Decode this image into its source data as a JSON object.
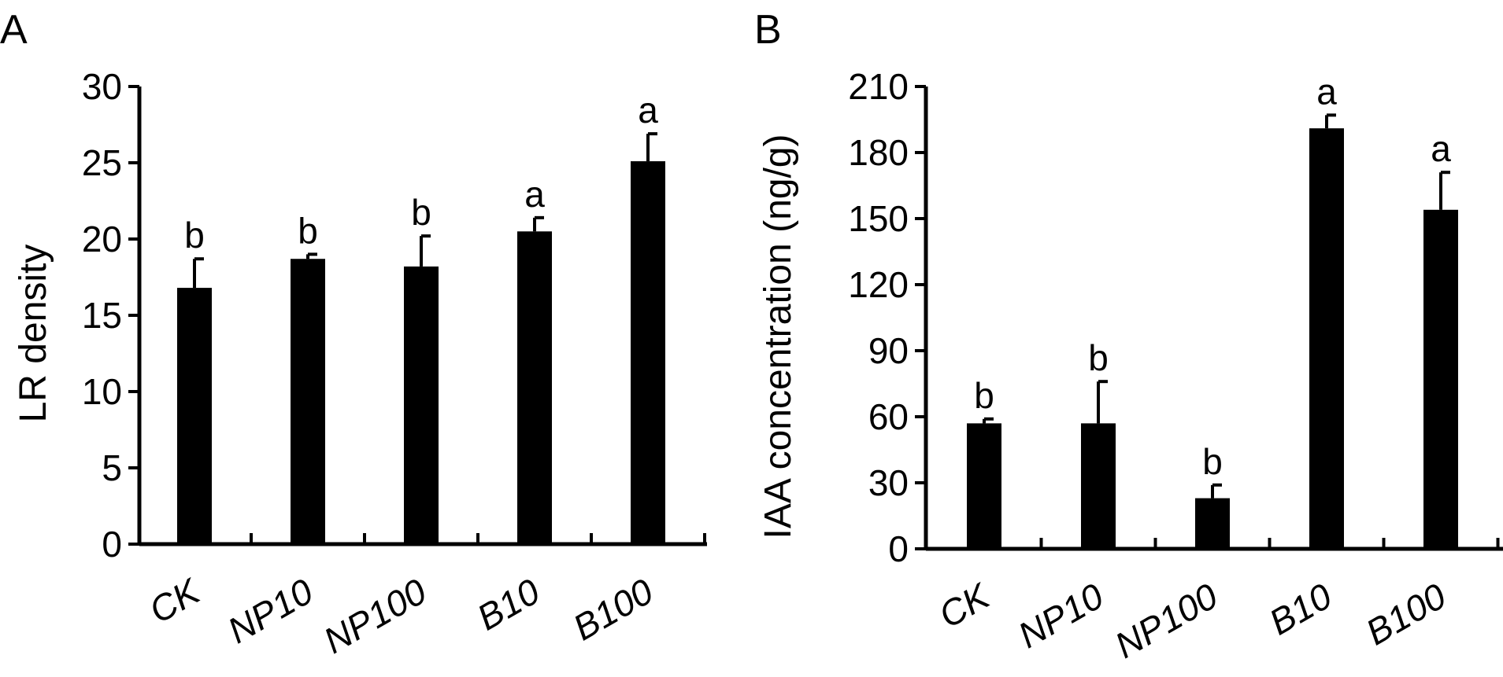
{
  "chart_data": [
    {
      "type": "bar",
      "panel": "A",
      "categories": [
        "CK",
        "NP10",
        "NP100",
        "B10",
        "B100"
      ],
      "values": [
        16.8,
        18.7,
        18.2,
        20.5,
        25.1
      ],
      "errors": [
        1.9,
        0.3,
        2.0,
        0.9,
        1.8
      ],
      "significance": [
        "b",
        "b",
        "b",
        "a",
        "a"
      ],
      "xlabel": "",
      "ylabel": "LR density",
      "ylim": [
        0,
        30
      ],
      "yticks": [
        0,
        5,
        10,
        15,
        20,
        25,
        30
      ],
      "grid": false,
      "bar_color": "#000000"
    },
    {
      "type": "bar",
      "panel": "B",
      "categories": [
        "CK",
        "NP10",
        "NP100",
        "B10",
        "B100"
      ],
      "values": [
        57,
        57,
        23,
        191,
        154
      ],
      "errors": [
        2,
        19,
        6,
        6,
        17
      ],
      "significance": [
        "b",
        "b",
        "b",
        "a",
        "a"
      ],
      "xlabel": "",
      "ylabel": "IAA concentration (ng/g)",
      "ylim": [
        0,
        210
      ],
      "yticks": [
        0,
        30,
        60,
        90,
        120,
        150,
        180,
        210
      ],
      "grid": false,
      "bar_color": "#000000"
    }
  ]
}
